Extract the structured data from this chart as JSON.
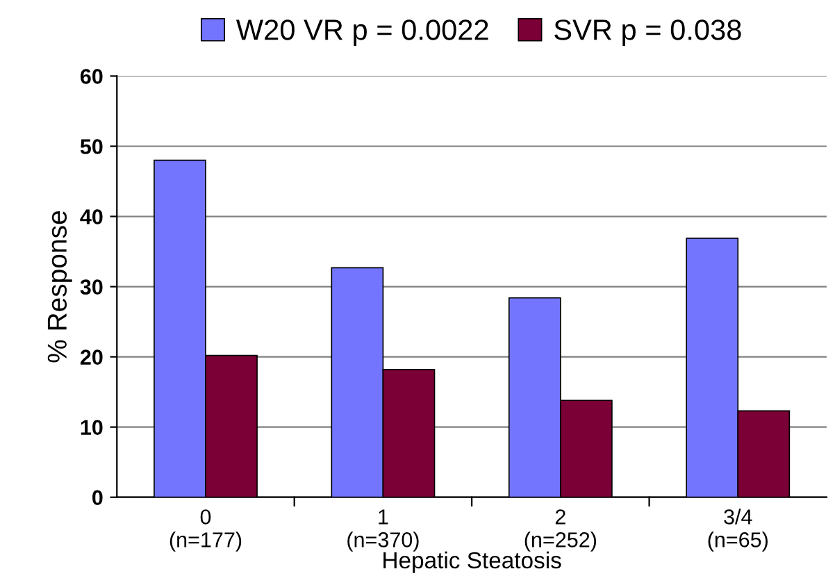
{
  "chart_data": {
    "type": "bar",
    "xlabel": "Hepatic Steatosis",
    "ylabel": "% Response",
    "categories": [
      "0\n(n=177)",
      "1\n(n=370)",
      "2\n(n=252)",
      "3/4\n(n=65)"
    ],
    "series": [
      {
        "name": "W20 VR p = 0.0022",
        "color": "#7375fe",
        "values": [
          48.0,
          32.7,
          28.4,
          36.9
        ]
      },
      {
        "name": "SVR p = 0.038",
        "color": "#7b0036",
        "values": [
          20.2,
          18.2,
          13.8,
          12.3
        ]
      }
    ],
    "ylim": [
      0,
      60
    ],
    "yticks": [
      0,
      10,
      20,
      30,
      40,
      50,
      60
    ],
    "grid": "y",
    "legend": "top"
  }
}
